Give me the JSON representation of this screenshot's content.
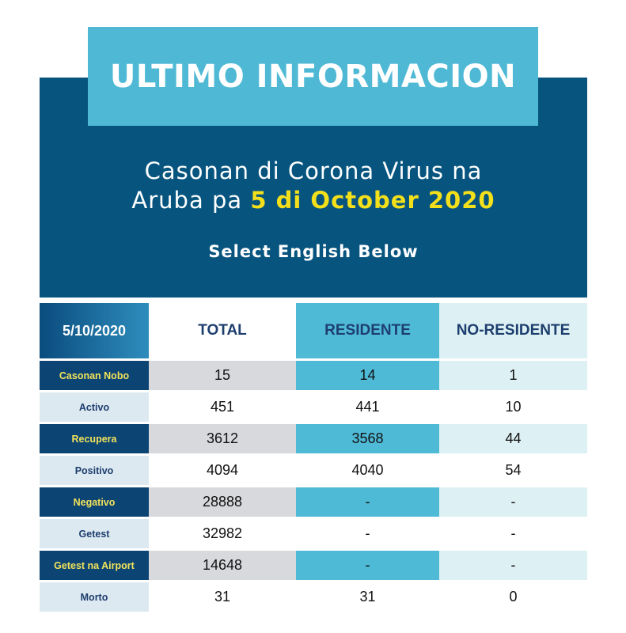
{
  "banner": {
    "title": "ULTIMO INFORMACION"
  },
  "headline": {
    "line1": "Casonan di Corona Virus na",
    "line2_prefix": "Aruba pa",
    "line2_highlight": "5 di October 2020"
  },
  "subtitle": "Select English Below",
  "table": {
    "header": {
      "date": "5/10/2020",
      "total": "TOTAL",
      "residente": "RESIDENTE",
      "no_residente": "NO-RESIDENTE"
    },
    "rows": [
      {
        "label": "Casonan Nobo",
        "total": "15",
        "residente": "14",
        "no_residente": "1"
      },
      {
        "label": "Activo",
        "total": "451",
        "residente": "441",
        "no_residente": "10"
      },
      {
        "label": "Recupera",
        "total": "3612",
        "residente": "3568",
        "no_residente": "44"
      },
      {
        "label": "Positivo",
        "total": "4094",
        "residente": "4040",
        "no_residente": "54"
      },
      {
        "label": "Negativo",
        "total": "28888",
        "residente": "-",
        "no_residente": "-"
      },
      {
        "label": "Getest",
        "total": "32982",
        "residente": "-",
        "no_residente": "-"
      },
      {
        "label": "Getest na Airport",
        "total": "14648",
        "residente": "-",
        "no_residente": "-"
      },
      {
        "label": "Morto",
        "total": "31",
        "residente": "31",
        "no_residente": "0"
      }
    ]
  },
  "colors": {
    "panel": "#07557f",
    "banner": "#4fb9d5",
    "highlight": "#f4df1b",
    "row_label_dark": "#0c4574",
    "residente_col": "#4fbad6"
  }
}
